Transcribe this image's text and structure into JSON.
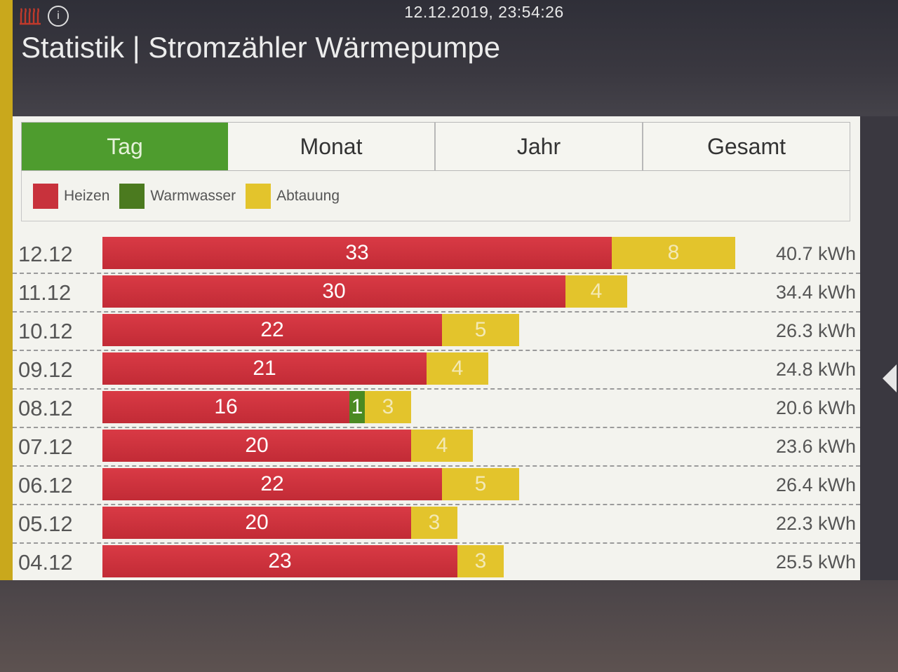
{
  "header": {
    "datetime": "12.12.2019, 23:54:26",
    "title": "Statistik | Stromzähler Wärmepumpe",
    "info_icon_glyph": "i"
  },
  "tabs": [
    {
      "label": "Tag",
      "active": true
    },
    {
      "label": "Monat",
      "active": false
    },
    {
      "label": "Jahr",
      "active": false
    },
    {
      "label": "Gesamt",
      "active": false
    }
  ],
  "legend": [
    {
      "label": "Heizen",
      "color": "#c8323c"
    },
    {
      "label": "Warmwasser",
      "color": "#4b7a1f"
    },
    {
      "label": "Abtauung",
      "color": "#e3c42c"
    }
  ],
  "rows": [
    {
      "date": "12.12",
      "heizen": "33",
      "warmwasser": "",
      "abtauung": "8",
      "total": "40.7 kWh"
    },
    {
      "date": "11.12",
      "heizen": "30",
      "warmwasser": "",
      "abtauung": "4",
      "total": "34.4 kWh"
    },
    {
      "date": "10.12",
      "heizen": "22",
      "warmwasser": "",
      "abtauung": "5",
      "total": "26.3 kWh"
    },
    {
      "date": "09.12",
      "heizen": "21",
      "warmwasser": "",
      "abtauung": "4",
      "total": "24.8 kWh"
    },
    {
      "date": "08.12",
      "heizen": "16",
      "warmwasser": "1",
      "abtauung": "3",
      "total": "20.6 kWh"
    },
    {
      "date": "07.12",
      "heizen": "20",
      "warmwasser": "",
      "abtauung": "4",
      "total": "23.6 kWh"
    },
    {
      "date": "06.12",
      "heizen": "22",
      "warmwasser": "",
      "abtauung": "5",
      "total": "26.4 kWh"
    },
    {
      "date": "05.12",
      "heizen": "20",
      "warmwasser": "",
      "abtauung": "3",
      "total": "22.3 kWh"
    },
    {
      "date": "04.12",
      "heizen": "23",
      "warmwasser": "",
      "abtauung": "3",
      "total": "25.5 kWh"
    }
  ],
  "colors": {
    "active_tab": "#4e9c2e",
    "heizen": "#c8323c",
    "warmwasser": "#4b7a1f",
    "abtauung": "#e3c42c",
    "accent_left": "#c9a81c"
  },
  "icons": {
    "heater": "heater-icon",
    "info": "info-icon",
    "next": "chevron-right-icon"
  }
}
